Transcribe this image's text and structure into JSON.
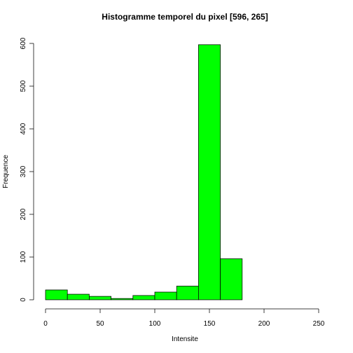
{
  "chart_data": {
    "type": "bar",
    "title": "Histogramme temporel du pixel [596, 265]",
    "xlabel": "Intensite",
    "ylabel": "Frequence",
    "bin_width": 20,
    "bins": [
      {
        "x0": 0,
        "x1": 20,
        "count": 23
      },
      {
        "x0": 20,
        "x1": 40,
        "count": 13
      },
      {
        "x0": 40,
        "x1": 60,
        "count": 8
      },
      {
        "x0": 60,
        "x1": 80,
        "count": 3
      },
      {
        "x0": 80,
        "x1": 100,
        "count": 10
      },
      {
        "x0": 100,
        "x1": 120,
        "count": 18
      },
      {
        "x0": 120,
        "x1": 140,
        "count": 32
      },
      {
        "x0": 140,
        "x1": 160,
        "count": 597
      },
      {
        "x0": 160,
        "x1": 180,
        "count": 96
      }
    ],
    "xlim": [
      0,
      250
    ],
    "ylim": [
      0,
      600
    ],
    "xticks": [
      0,
      50,
      100,
      150,
      200,
      250
    ],
    "yticks": [
      0,
      100,
      200,
      300,
      400,
      500,
      600
    ],
    "bar_color": "#00ff00",
    "grid": false
  }
}
